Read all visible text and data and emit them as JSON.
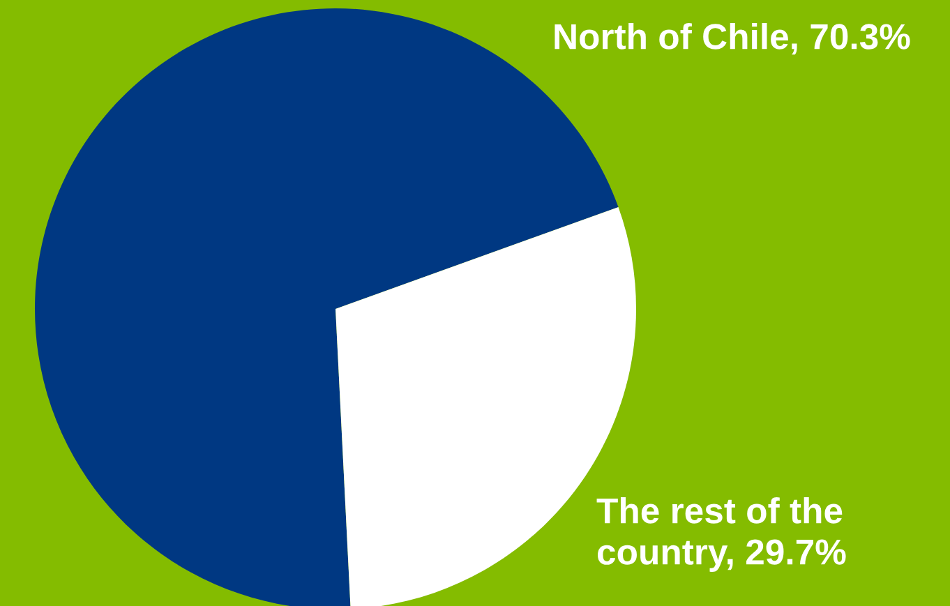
{
  "chart_data": {
    "type": "pie",
    "categories": [
      "North of Chile, 70.3%",
      "The rest of the country, 29.7%"
    ],
    "values": [
      70.3,
      29.7
    ],
    "colors": [
      "#003882",
      "#ffffff"
    ],
    "legend": false
  }
}
